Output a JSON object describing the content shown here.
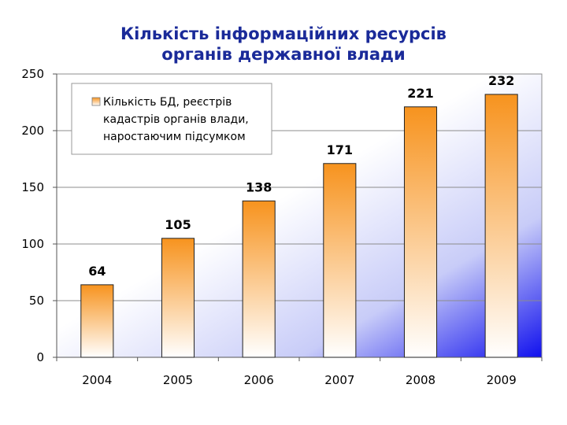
{
  "chart_data": {
    "type": "bar",
    "title_lines": [
      "Кількість інформаційних ресурсів",
      "органів державної влади"
    ],
    "categories": [
      "2004",
      "2005",
      "2006",
      "2007",
      "2008",
      "2009"
    ],
    "series": [
      {
        "name": "Кількість БД, реєстрів кадастрів органів влади, наростаючим підсумком",
        "name_lines": [
          "Кількість БД, реєстрів",
          "кадастрів органів влади,",
          "наростаючим підсумком"
        ],
        "values": [
          64,
          105,
          138,
          171,
          221,
          232
        ]
      }
    ],
    "data_labels": [
      "64",
      "105",
      "138",
      "171",
      "221",
      "232"
    ],
    "ylim": [
      0,
      250
    ],
    "yticks": [
      "0",
      "50",
      "100",
      "150",
      "200",
      "250"
    ],
    "grid": true,
    "legend_position": "top-left",
    "colors": {
      "bar_top": "#f7931e",
      "bar_bottom": "#ffffff",
      "plot_bg_light": "#ffffff",
      "plot_bg_dark": "#1010ee",
      "title": "#1a2a99",
      "gridline": "#8c8c8c"
    }
  }
}
